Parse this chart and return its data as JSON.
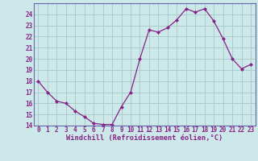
{
  "x": [
    0,
    1,
    2,
    3,
    4,
    5,
    6,
    7,
    8,
    9,
    10,
    11,
    12,
    13,
    14,
    15,
    16,
    17,
    18,
    19,
    20,
    21,
    22,
    23
  ],
  "y": [
    18,
    17,
    16.2,
    16,
    15.3,
    14.8,
    14.2,
    14.1,
    14.1,
    15.7,
    17.0,
    20.0,
    22.6,
    22.4,
    22.8,
    23.5,
    24.5,
    24.2,
    24.5,
    23.4,
    21.8,
    20.0,
    19.1,
    19.5
  ],
  "line_color": "#882288",
  "marker": "D",
  "marker_size": 2.0,
  "bg_color": "#cce8e8",
  "grid_color": "#aacccc",
  "xlabel": "Windchill (Refroidissement éolien,°C)",
  "ylim": [
    14,
    25
  ],
  "yticks": [
    14,
    15,
    16,
    17,
    18,
    19,
    20,
    21,
    22,
    23,
    24
  ],
  "xticks": [
    0,
    1,
    2,
    3,
    4,
    5,
    6,
    7,
    8,
    9,
    10,
    11,
    12,
    13,
    14,
    15,
    16,
    17,
    18,
    19,
    20,
    21,
    22,
    23
  ],
  "xlim": [
    -0.5,
    23.5
  ],
  "tick_fontsize": 5.5,
  "xlabel_fontsize": 6.2,
  "spine_color": "#6666aa"
}
